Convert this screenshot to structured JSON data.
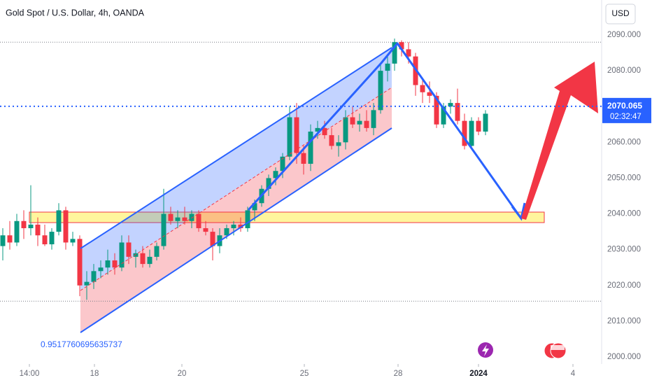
{
  "chart_data": {
    "type": "candlestick",
    "title": "Gold Spot / U.S. Dollar, 4h, OANDA",
    "currency": "USD",
    "annotation": "0.9517760695635737",
    "last_price": {
      "value": 2070.065,
      "label": "2070.065"
    },
    "countdown": "02:32:47",
    "up_color": "#089981",
    "down_color": "#f23645",
    "x": [
      0,
      1,
      2,
      3,
      4,
      5,
      6,
      7,
      8,
      9,
      10,
      11,
      12,
      13,
      14,
      15,
      16,
      17,
      18,
      19,
      20,
      21,
      22,
      23,
      24,
      25,
      26,
      27,
      28,
      29,
      30,
      31,
      32,
      33,
      34,
      35,
      36,
      37,
      38,
      39,
      40,
      41,
      42,
      43,
      44,
      45,
      46,
      47,
      48,
      49,
      50,
      51,
      52,
      53,
      54,
      55,
      56,
      57,
      58,
      59,
      60,
      61,
      62,
      63,
      64,
      65,
      66,
      67,
      68,
      69
    ],
    "open": [
      2031,
      2034,
      2032,
      2038,
      2036,
      2037,
      2034,
      2031.5,
      2035,
      2041,
      2032,
      2033,
      2020,
      2021,
      2024,
      2025,
      2027,
      2025,
      2032,
      2028,
      2029,
      2026,
      2028,
      2031,
      2040,
      2038,
      2039,
      2038,
      2040,
      2036,
      2035,
      2031,
      2034,
      2036,
      2037,
      2036,
      2041,
      2043,
      2047,
      2050,
      2052,
      2056,
      2067,
      2057,
      2054,
      2063,
      2064,
      2062,
      2059,
      2060,
      2067,
      2065,
      2066,
      2064,
      2069,
      2080,
      2082,
      2088,
      2086,
      2084,
      2076,
      2074,
      2073,
      2065,
      2070,
      2071,
      2066,
      2059,
      2066,
      2063
    ],
    "high": [
      2036,
      2038,
      2040,
      2041,
      2048,
      2039,
      2037,
      2036,
      2043,
      2042,
      2035,
      2034,
      2024,
      2026,
      2027,
      2030,
      2029,
      2034,
      2034,
      2030,
      2031,
      2030,
      2032,
      2047,
      2042,
      2041,
      2042,
      2041,
      2041,
      2038,
      2036,
      2036,
      2037,
      2038,
      2039,
      2042,
      2044,
      2048,
      2051,
      2053,
      2057,
      2070,
      2071,
      2059,
      2065,
      2066,
      2066,
      2064,
      2062,
      2069,
      2070,
      2068,
      2069,
      2071,
      2082,
      2084,
      2089,
      2088.5,
      2088,
      2085,
      2078,
      2077,
      2074,
      2071,
      2072,
      2075,
      2068,
      2067,
      2067,
      2069
    ],
    "low": [
      2027,
      2030,
      2031,
      2033,
      2034,
      2031,
      2031,
      2030,
      2034,
      2030,
      2031,
      2017,
      2016,
      2019,
      2022,
      2023,
      2023,
      2024,
      2026,
      2025,
      2025,
      2025,
      2027,
      2030,
      2037,
      2036,
      2037,
      2036,
      2035,
      2034,
      2027,
      2029,
      2033,
      2034,
      2035,
      2035,
      2038,
      2042,
      2045,
      2048,
      2050,
      2055,
      2054,
      2051,
      2052,
      2061,
      2061,
      2058,
      2056,
      2058,
      2064,
      2063,
      2063,
      2062,
      2068,
      2077,
      2080,
      2084,
      2082,
      2073,
      2071,
      2071,
      2064,
      2064,
      2068,
      2065,
      2058,
      2058,
      2062,
      2062
    ],
    "close": [
      2034,
      2032,
      2038,
      2036,
      2037,
      2034,
      2031.5,
      2035,
      2041,
      2032,
      2033,
      2020,
      2021,
      2024,
      2025,
      2027,
      2025,
      2032,
      2028,
      2029,
      2026,
      2028,
      2031,
      2040,
      2038,
      2039,
      2038,
      2040,
      2036,
      2035,
      2031,
      2034,
      2036,
      2037,
      2036,
      2041,
      2043,
      2047,
      2050,
      2052,
      2056,
      2067,
      2057,
      2054,
      2063,
      2064,
      2062,
      2059,
      2060,
      2067,
      2065,
      2066,
      2064,
      2069,
      2080,
      2082,
      2088,
      2086,
      2084,
      2076,
      2074,
      2073,
      2065,
      2070,
      2071,
      2066,
      2059,
      2066,
      2063,
      2068
    ],
    "horizontal_lines": [
      2088,
      2015.6
    ],
    "xlim": [
      -0.4,
      85.6
    ],
    "ylim": [
      1998.04,
      2099.78
    ],
    "xticks": [
      {
        "value": 3.8,
        "label": "14:00"
      },
      {
        "value": 13.1,
        "label": "18"
      },
      {
        "value": 25.6,
        "label": "20"
      },
      {
        "value": 43.1,
        "label": "25"
      },
      {
        "value": 56.5,
        "label": "28"
      },
      {
        "value": 68,
        "label": "2024"
      },
      {
        "value": 81.5,
        "label": "4"
      }
    ],
    "yticks": [
      {
        "value": 2000,
        "label": "2000.000"
      },
      {
        "value": 2010,
        "label": "2010.000"
      },
      {
        "value": 2020,
        "label": "2020.000"
      },
      {
        "value": 2030,
        "label": "2030.000"
      },
      {
        "value": 2040,
        "label": "2040.000"
      },
      {
        "value": 2050,
        "label": "2050.000"
      },
      {
        "value": 2060,
        "label": "2060.000"
      },
      {
        "value": 2080,
        "label": "2080.000"
      },
      {
        "value": 2090,
        "label": "2090.000"
      }
    ]
  }
}
